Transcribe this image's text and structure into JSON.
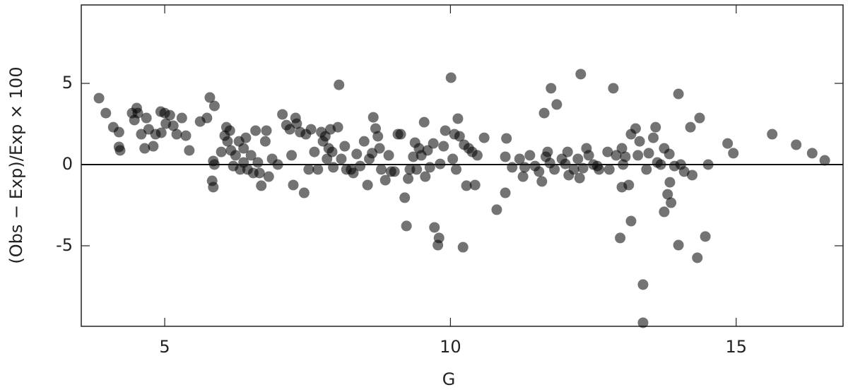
{
  "chart_data": {
    "type": "scatter",
    "x_label": "G",
    "y_label": "(Obs − Exp)/Exp × 100",
    "xlim": [
      3.54,
      16.87
    ],
    "ylim": [
      -9.96,
      9.83
    ],
    "xticks": [
      5,
      10,
      15
    ],
    "yticks": [
      -5,
      0,
      5
    ],
    "hline": 0,
    "color": "#000000",
    "x": [
      3.85,
      3.97,
      4.1,
      4.2,
      4.2,
      4.22,
      4.43,
      4.47,
      4.51,
      4.53,
      4.59,
      4.65,
      4.68,
      4.72,
      4.8,
      4.84,
      4.93,
      4.94,
      5.0,
      5.02,
      5.09,
      5.15,
      5.21,
      5.3,
      5.37,
      5.43,
      5.62,
      5.74,
      5.79,
      5.87,
      5.83,
      5.85,
      5.85,
      5.87,
      5.99,
      6.05,
      6.08,
      6.1,
      6.14,
      6.16,
      6.2,
      6.24,
      6.3,
      6.32,
      6.38,
      6.38,
      6.42,
      6.45,
      6.51,
      6.55,
      6.59,
      6.63,
      6.66,
      6.69,
      6.76,
      6.78,
      6.82,
      6.88,
      6.98,
      7.06,
      7.13,
      7.19,
      7.22,
      7.25,
      7.29,
      7.31,
      7.37,
      7.44,
      7.47,
      7.52,
      7.56,
      7.62,
      7.68,
      7.74,
      7.77,
      7.81,
      7.84,
      7.87,
      7.9,
      7.93,
      7.95,
      8.03,
      8.05,
      8.09,
      8.15,
      8.18,
      8.26,
      8.3,
      8.36,
      8.42,
      8.49,
      8.55,
      8.58,
      8.63,
      8.65,
      8.69,
      8.73,
      8.76,
      8.79,
      8.86,
      8.92,
      8.96,
      9.02,
      9.08,
      9.13,
      9.2,
      9.23,
      9.26,
      9.29,
      9.35,
      9.38,
      9.41,
      9.45,
      9.49,
      9.54,
      9.56,
      9.6,
      9.64,
      9.7,
      9.72,
      9.78,
      9.8,
      9.82,
      9.88,
      9.91,
      10.01,
      10.04,
      10.07,
      10.1,
      10.13,
      10.16,
      10.22,
      10.24,
      10.28,
      10.32,
      10.38,
      10.43,
      10.47,
      10.59,
      10.81,
      10.96,
      10.98,
      10.96,
      11.08,
      11.21,
      11.27,
      11.3,
      11.39,
      11.48,
      11.55,
      11.6,
      11.64,
      11.67,
      11.7,
      11.74,
      11.76,
      11.82,
      11.86,
      11.95,
      12.01,
      12.05,
      12.07,
      12.16,
      12.23,
      12.26,
      12.28,
      12.32,
      12.38,
      12.42,
      12.5,
      12.57,
      12.6,
      12.75,
      12.78,
      12.85,
      12.9,
      12.97,
      13.0,
      13.0,
      13.02,
      13.06,
      13.12,
      13.16,
      13.16,
      13.24,
      13.28,
      13.31,
      13.37,
      13.37,
      13.43,
      13.47,
      13.55,
      13.59,
      13.62,
      13.68,
      13.74,
      13.74,
      13.8,
      13.83,
      13.84,
      13.86,
      13.92,
      13.99,
      13.99,
      14.03,
      14.09,
      14.2,
      14.23,
      14.32,
      14.36,
      14.46,
      14.51,
      14.85,
      14.95,
      15.63,
      16.05,
      16.33,
      16.55
    ],
    "y": [
      4.09,
      3.17,
      2.3,
      2.0,
      1.09,
      0.87,
      3.17,
      2.74,
      3.48,
      3.17,
      1.87,
      1.0,
      2.87,
      2.17,
      1.13,
      1.87,
      3.26,
      1.96,
      3.17,
      2.52,
      3.04,
      2.39,
      1.87,
      2.87,
      1.78,
      0.87,
      2.65,
      2.87,
      4.13,
      3.61,
      -1.0,
      -1.39,
      0.22,
      0.0,
      0.78,
      1.78,
      2.3,
      1.43,
      2.09,
      0.87,
      -0.09,
      0.57,
      1.43,
      -0.3,
      1.0,
      0.13,
      1.65,
      -0.3,
      0.57,
      -0.52,
      2.09,
      0.13,
      -0.52,
      -1.3,
      1.43,
      2.09,
      -0.74,
      0.35,
      0.0,
      3.09,
      2.43,
      2.17,
      0.57,
      -1.26,
      2.87,
      2.52,
      2.0,
      -1.74,
      1.87,
      -0.3,
      2.17,
      0.78,
      -0.3,
      2.0,
      1.43,
      1.74,
      0.35,
      1.0,
      2.17,
      0.78,
      -0.17,
      2.3,
      4.91,
      0.35,
      1.13,
      -0.3,
      -0.3,
      -0.52,
      0.65,
      -0.09,
      1.43,
      -1.26,
      0.35,
      0.7,
      2.91,
      2.22,
      1.74,
      1.0,
      -0.3,
      -0.96,
      0.57,
      -0.43,
      -0.43,
      1.87,
      1.87,
      -2.04,
      -3.78,
      -0.87,
      -0.3,
      0.48,
      1.35,
      -0.3,
      1.0,
      0.57,
      2.61,
      -0.74,
      0.87,
      -0.17,
      1.3,
      -3.87,
      -4.96,
      -4.52,
      0.04,
      1.13,
      2.09,
      5.35,
      0.35,
      1.87,
      -0.3,
      2.83,
      1.74,
      -5.09,
      1.22,
      -1.3,
      1.0,
      0.78,
      -1.26,
      0.57,
      1.65,
      -2.78,
      -1.74,
      1.61,
      0.48,
      -0.17,
      0.35,
      -0.74,
      -0.17,
      0.57,
      -0.09,
      -0.43,
      -1.04,
      3.17,
      0.48,
      0.78,
      0.09,
      4.7,
      -0.3,
      3.7,
      0.35,
      0.04,
      0.78,
      -0.65,
      -0.3,
      0.35,
      -0.83,
      5.57,
      -0.22,
      1.0,
      0.57,
      0.0,
      -0.09,
      -0.3,
      0.78,
      -0.3,
      4.7,
      0.57,
      -4.52,
      1.0,
      -1.39,
      0.0,
      0.48,
      -1.26,
      1.87,
      -3.48,
      2.22,
      0.57,
      1.43,
      -7.39,
      -9.74,
      -0.3,
      0.7,
      1.65,
      2.3,
      0.13,
      0.0,
      -2.91,
      1.0,
      -1.83,
      0.65,
      -1.09,
      -2.35,
      -0.09,
      4.35,
      -4.96,
      0.0,
      -0.43,
      2.3,
      -0.65,
      -5.74,
      2.87,
      -4.43,
      0.0,
      1.3,
      0.7,
      1.87,
      1.22,
      0.7,
      0.26
    ]
  }
}
